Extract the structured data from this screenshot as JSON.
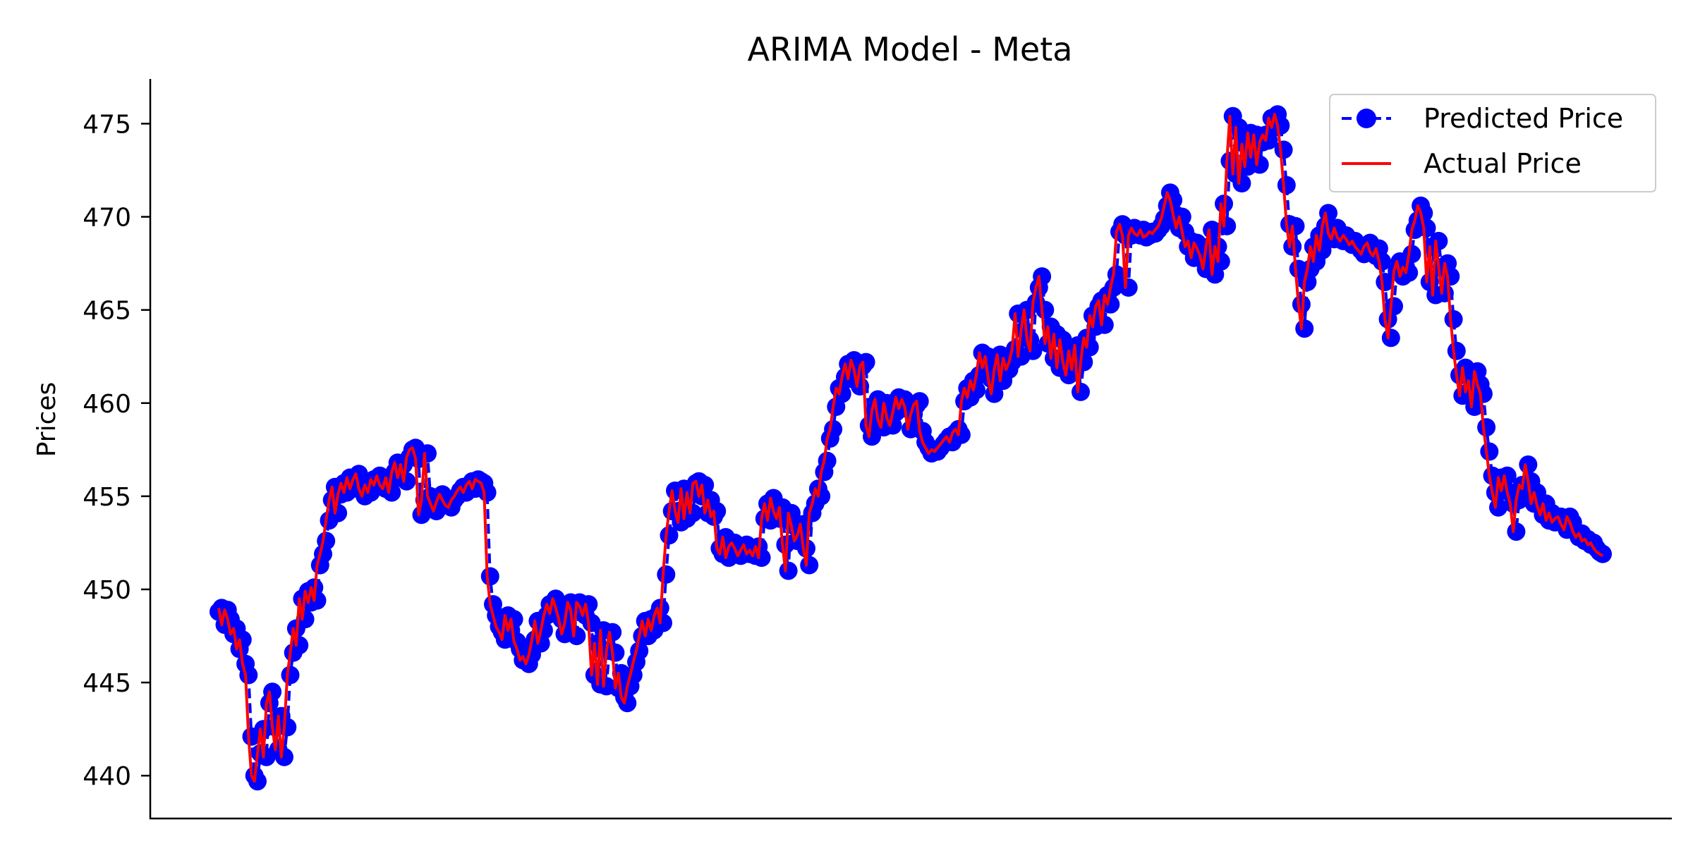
{
  "chart_data": {
    "type": "line",
    "title": "ARIMA Model - Meta",
    "xlabel": "",
    "ylabel": "Prices",
    "ylim": [
      437.7,
      477.4
    ],
    "yticks": [
      440,
      445,
      450,
      455,
      460,
      465,
      470,
      475
    ],
    "x_ticks_shown": false,
    "grid": false,
    "legend_position": "top-right",
    "series": [
      {
        "name": "Predicted Price",
        "color": "#0000ff",
        "style": "dashed line with circle markers",
        "values": [
          448.8,
          449.0,
          448.1,
          448.9,
          448.4,
          447.6,
          447.9,
          446.8,
          447.3,
          446.0,
          445.4,
          442.1,
          440.0,
          439.7,
          441.2,
          442.5,
          441.0,
          443.9,
          444.5,
          442.6,
          441.4,
          443.2,
          441.0,
          442.6,
          445.4,
          446.6,
          447.9,
          447.0,
          449.5,
          448.4,
          449.9,
          449.3,
          450.1,
          449.4,
          451.3,
          451.9,
          452.6,
          453.7,
          454.8,
          455.5,
          454.1,
          455.1,
          455.7,
          455.2,
          456.0,
          455.4,
          455.9,
          456.2,
          455.4,
          455.0,
          455.6,
          455.2,
          455.9,
          455.6,
          456.1,
          455.6,
          455.4,
          456.0,
          455.2,
          456.3,
          456.8,
          456.0,
          456.7,
          455.8,
          457.1,
          457.5,
          457.6,
          457.0,
          454.0,
          454.8,
          457.3,
          455.0,
          454.6,
          454.2,
          454.7,
          455.1,
          454.8,
          454.5,
          454.4,
          454.8,
          455.0,
          455.3,
          455.5,
          455.2,
          455.6,
          455.8,
          455.4,
          455.9,
          455.8,
          455.7,
          455.2,
          450.7,
          449.2,
          448.6,
          448.0,
          447.7,
          447.3,
          448.6,
          447.8,
          448.4,
          447.2,
          446.8,
          446.2,
          446.4,
          446.0,
          446.5,
          447.3,
          448.3,
          447.1,
          447.8,
          448.6,
          449.2,
          448.7,
          449.5,
          449.0,
          448.4,
          447.6,
          448.2,
          449.3,
          448.9,
          447.5,
          449.3,
          449.1,
          448.6,
          449.2,
          448.2,
          445.4,
          447.1,
          444.9,
          447.8,
          444.8,
          446.7,
          447.7,
          446.6,
          444.7,
          445.5,
          444.2,
          443.9,
          444.8,
          445.4,
          446.1,
          446.7,
          447.5,
          448.3,
          447.5,
          448.4,
          447.8,
          448.6,
          449.0,
          448.2,
          450.8,
          452.9,
          454.2,
          455.3,
          454.2,
          453.6,
          455.4,
          453.8,
          455.2,
          454.1,
          455.7,
          455.8,
          455.0,
          455.6,
          454.1,
          454.8,
          453.9,
          454.2,
          452.2,
          451.9,
          452.8,
          451.7,
          452.3,
          452.5,
          452.2,
          451.8,
          452.1,
          452.4,
          451.9,
          452.1,
          451.8,
          452.3,
          451.7,
          453.8,
          454.6,
          453.7,
          454.9,
          454.2,
          453.8,
          454.4,
          452.4,
          451.0,
          454.1,
          453.4,
          452.6,
          452.9,
          453.5,
          452.2,
          451.3,
          454.1,
          454.6,
          455.4,
          455.0,
          456.3,
          456.9,
          458.1,
          458.6,
          459.8,
          460.8,
          460.5,
          461.4,
          462.1,
          461.3,
          462.3,
          461.8,
          460.9,
          462.0,
          462.2,
          458.8,
          458.2,
          459.6,
          460.2,
          459.1,
          458.7,
          460.0,
          459.2,
          458.8,
          459.5,
          460.3,
          459.7,
          460.2,
          459.8,
          458.6,
          459.4,
          459.9,
          460.1,
          458.5,
          457.9,
          457.6,
          457.3,
          457.5,
          457.4,
          457.6,
          457.8,
          458.0,
          458.2,
          457.9,
          458.4,
          458.6,
          458.3,
          460.1,
          460.8,
          460.3,
          461.2,
          460.7,
          461.5,
          462.7,
          461.9,
          462.5,
          461.3,
          460.5,
          461.8,
          462.6,
          461.2,
          462.4,
          461.8,
          462.2,
          462.9,
          464.8,
          462.5,
          463.9,
          465.0,
          463.4,
          462.8,
          465.4,
          466.2,
          466.8,
          465.0,
          463.2,
          464.1,
          462.4,
          463.7,
          461.9,
          463.4,
          462.2,
          461.5,
          462.8,
          461.8,
          463.1,
          460.6,
          462.2,
          463.5,
          463.0,
          464.7,
          464.1,
          465.2,
          465.5,
          464.2,
          465.8,
          465.3,
          466.2,
          466.9,
          469.2,
          469.6,
          469.0,
          466.2,
          469.0,
          469.4,
          469.1,
          469.0,
          469.3,
          468.9,
          469.0,
          469.2,
          469.1,
          469.3,
          469.5,
          469.9,
          470.6,
          471.3,
          470.9,
          470.1,
          469.4,
          470.0,
          469.2,
          468.4,
          468.7,
          467.8,
          468.6,
          468.3,
          467.9,
          467.2,
          468.4,
          469.3,
          466.9,
          468.4,
          467.6,
          470.7,
          469.5,
          473.0,
          475.4,
          472.3,
          474.8,
          471.8,
          473.9,
          472.7,
          474.5,
          473.2,
          474.4,
          472.8,
          474.0,
          474.4,
          474.1,
          475.3,
          474.8,
          475.5,
          474.9,
          473.6,
          471.7,
          469.6,
          468.4,
          469.5,
          467.2,
          465.3,
          464.0,
          466.5,
          467.2,
          468.4,
          467.6,
          469.0,
          468.2,
          469.5,
          470.2,
          469.1,
          468.8,
          469.4,
          468.9,
          468.7,
          469.0,
          468.8,
          468.5,
          468.7,
          468.4,
          468.2,
          468.0,
          468.4,
          468.6,
          468.1,
          467.9,
          468.3,
          467.6,
          466.5,
          464.5,
          463.5,
          465.2,
          467.1,
          467.6,
          466.8,
          467.3,
          467.0,
          468.0,
          469.3,
          469.8,
          470.6,
          470.2,
          469.4,
          466.5,
          468.4,
          465.8,
          468.7,
          467.3,
          465.9,
          467.5,
          466.8,
          464.5,
          462.8,
          461.5,
          460.4,
          461.9,
          460.6,
          461.2,
          459.8,
          461.7,
          461.0,
          460.5,
          458.7,
          457.4,
          456.1,
          455.2,
          454.4,
          456.0,
          455.3,
          456.1,
          455.2,
          454.6,
          453.1,
          454.8,
          455.6,
          455.4,
          456.7,
          455.8,
          454.6,
          455.2,
          454.5,
          454.0,
          454.6,
          453.7,
          454.1,
          453.6,
          453.8,
          453.9,
          453.5,
          453.2,
          453.9,
          453.6,
          453.1,
          452.8,
          453.0,
          452.6,
          452.7,
          452.4,
          452.5,
          452.2,
          452.0,
          451.9
        ]
      },
      {
        "name": "Actual Price",
        "color": "#ff0000",
        "style": "solid line",
        "values": [
          449.0,
          448.1,
          448.9,
          448.4,
          447.6,
          447.9,
          446.8,
          447.3,
          446.0,
          445.4,
          442.1,
          440.0,
          439.7,
          441.2,
          442.5,
          441.0,
          443.9,
          444.5,
          442.6,
          441.4,
          443.2,
          441.0,
          442.6,
          445.4,
          446.6,
          447.9,
          447.0,
          449.5,
          448.4,
          449.9,
          449.3,
          450.1,
          449.4,
          451.3,
          451.9,
          452.6,
          453.7,
          454.8,
          455.5,
          454.1,
          455.1,
          455.7,
          455.2,
          456.0,
          455.4,
          455.9,
          456.2,
          455.4,
          455.0,
          455.6,
          455.2,
          455.9,
          455.6,
          456.1,
          455.6,
          455.4,
          456.0,
          455.2,
          456.3,
          456.8,
          456.0,
          456.7,
          455.8,
          457.1,
          457.5,
          457.6,
          457.0,
          454.0,
          454.8,
          457.3,
          455.0,
          454.6,
          454.2,
          454.7,
          455.1,
          454.8,
          454.5,
          454.4,
          454.8,
          455.0,
          455.3,
          455.5,
          455.2,
          455.6,
          455.8,
          455.4,
          455.9,
          455.8,
          455.7,
          455.2,
          450.7,
          449.2,
          448.6,
          448.0,
          447.7,
          447.3,
          448.6,
          447.8,
          448.4,
          447.2,
          446.8,
          446.2,
          446.4,
          446.0,
          446.5,
          447.3,
          448.3,
          447.1,
          447.8,
          448.6,
          449.2,
          448.7,
          449.5,
          449.0,
          448.4,
          447.6,
          448.2,
          449.3,
          448.9,
          447.5,
          449.3,
          449.1,
          448.6,
          449.2,
          448.2,
          445.4,
          447.1,
          444.9,
          447.8,
          444.8,
          446.7,
          447.7,
          446.6,
          444.7,
          445.5,
          444.2,
          443.9,
          444.8,
          445.4,
          446.1,
          446.7,
          447.5,
          448.3,
          447.5,
          448.4,
          447.8,
          448.6,
          449.0,
          448.2,
          450.8,
          452.9,
          454.2,
          455.3,
          454.2,
          453.6,
          455.4,
          453.8,
          455.2,
          454.1,
          455.7,
          455.8,
          455.0,
          455.6,
          454.1,
          454.8,
          453.9,
          454.2,
          452.2,
          451.9,
          452.8,
          451.7,
          452.3,
          452.5,
          452.2,
          451.8,
          452.1,
          452.4,
          451.9,
          452.1,
          451.8,
          452.3,
          451.7,
          453.8,
          454.6,
          453.7,
          454.9,
          454.2,
          453.8,
          454.4,
          452.4,
          451.0,
          454.1,
          453.4,
          452.6,
          452.9,
          453.5,
          452.2,
          451.3,
          454.1,
          454.6,
          455.4,
          455.0,
          456.3,
          456.9,
          458.1,
          458.6,
          459.8,
          460.8,
          460.5,
          461.4,
          462.1,
          461.3,
          462.3,
          461.8,
          460.9,
          462.0,
          462.2,
          458.8,
          458.2,
          459.6,
          460.2,
          459.1,
          458.7,
          460.0,
          459.2,
          458.8,
          459.5,
          460.3,
          459.7,
          460.2,
          459.8,
          458.6,
          459.4,
          459.9,
          460.1,
          458.5,
          457.9,
          457.6,
          457.3,
          457.5,
          457.4,
          457.6,
          457.8,
          458.0,
          458.2,
          457.9,
          458.4,
          458.6,
          458.3,
          460.1,
          460.8,
          460.3,
          461.2,
          460.7,
          461.5,
          462.7,
          461.9,
          462.5,
          461.3,
          460.5,
          461.8,
          462.6,
          461.2,
          462.4,
          461.8,
          462.2,
          462.9,
          464.8,
          462.5,
          463.9,
          465.0,
          463.4,
          462.8,
          465.4,
          466.2,
          466.8,
          465.0,
          463.2,
          464.1,
          462.4,
          463.7,
          461.9,
          463.4,
          462.2,
          461.5,
          462.8,
          461.8,
          463.1,
          460.6,
          462.2,
          463.5,
          463.0,
          464.7,
          464.1,
          465.2,
          465.5,
          464.2,
          465.8,
          465.3,
          466.2,
          466.9,
          469.2,
          469.6,
          469.0,
          466.2,
          469.0,
          469.4,
          469.1,
          469.0,
          469.3,
          468.9,
          469.0,
          469.2,
          469.1,
          469.3,
          469.5,
          469.9,
          470.6,
          471.3,
          470.9,
          470.1,
          469.4,
          470.0,
          469.2,
          468.4,
          468.7,
          467.8,
          468.6,
          468.3,
          467.9,
          467.2,
          468.4,
          469.3,
          466.9,
          468.4,
          467.6,
          470.7,
          469.5,
          473.0,
          475.4,
          472.3,
          474.8,
          471.8,
          473.9,
          472.7,
          474.5,
          473.2,
          474.4,
          472.8,
          474.0,
          474.4,
          474.1,
          475.3,
          474.8,
          475.5,
          474.9,
          473.6,
          471.7,
          469.6,
          468.4,
          469.5,
          467.2,
          465.3,
          464.0,
          466.5,
          467.2,
          468.4,
          467.6,
          469.0,
          468.2,
          469.5,
          470.2,
          469.1,
          468.8,
          469.4,
          468.9,
          468.7,
          469.0,
          468.8,
          468.5,
          468.7,
          468.4,
          468.2,
          468.0,
          468.4,
          468.6,
          468.1,
          467.9,
          468.3,
          467.6,
          466.5,
          464.5,
          463.5,
          465.2,
          467.1,
          467.6,
          466.8,
          467.3,
          467.0,
          468.0,
          469.3,
          469.8,
          470.6,
          470.2,
          469.4,
          466.5,
          468.4,
          465.8,
          468.7,
          467.3,
          465.9,
          467.5,
          466.8,
          464.5,
          462.8,
          461.5,
          460.4,
          461.9,
          460.6,
          461.2,
          459.8,
          461.7,
          461.0,
          460.5,
          458.7,
          457.4,
          456.1,
          455.2,
          454.4,
          456.0,
          455.3,
          456.1,
          455.2,
          454.6,
          453.1,
          454.8,
          455.6,
          455.4,
          456.7,
          455.8,
          454.6,
          455.2,
          454.5,
          454.0,
          454.6,
          453.7,
          454.1,
          453.6,
          453.8,
          453.9,
          453.5,
          453.2,
          453.9,
          453.6,
          453.1,
          452.8,
          453.0,
          452.6,
          452.7,
          452.4,
          452.5,
          452.2,
          452.0,
          451.9,
          451.8
        ]
      }
    ]
  }
}
